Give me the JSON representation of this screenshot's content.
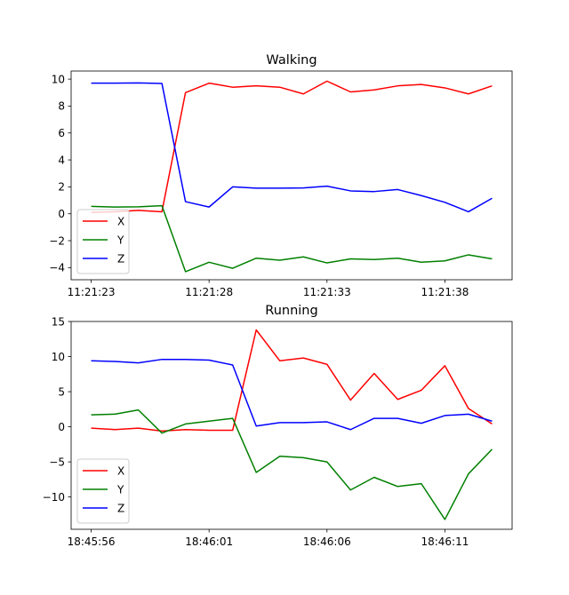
{
  "chart_data": [
    {
      "type": "line",
      "title": "Walking",
      "x": [
        "11:21:23",
        "11:21:24",
        "11:21:25",
        "11:21:26",
        "11:21:27",
        "11:21:28",
        "11:21:29",
        "11:21:30",
        "11:21:31",
        "11:21:32",
        "11:21:33",
        "11:21:34",
        "11:21:35",
        "11:21:36",
        "11:21:37",
        "11:21:38",
        "11:21:39",
        "11:21:40"
      ],
      "x_ticks": [
        "11:21:23",
        "11:21:28",
        "11:21:33",
        "11:21:38"
      ],
      "y_ticks": [
        -4,
        -2,
        0,
        2,
        4,
        6,
        8,
        10
      ],
      "ylim": [
        -4.9,
        10.6
      ],
      "xlim": [
        -0.85,
        17.85
      ],
      "legend": "lower-left",
      "grid": false,
      "series": [
        {
          "name": "X",
          "color": "#ff0000",
          "values": [
            0.1,
            0.15,
            0.25,
            0.15,
            9.0,
            9.7,
            9.4,
            9.5,
            9.4,
            8.9,
            9.85,
            9.05,
            9.2,
            9.5,
            9.6,
            9.35,
            8.9,
            9.5
          ]
        },
        {
          "name": "Y",
          "color": "#008000",
          "values": [
            0.55,
            0.5,
            0.52,
            0.6,
            -4.3,
            -3.6,
            -4.05,
            -3.3,
            -3.45,
            -3.2,
            -3.65,
            -3.35,
            -3.4,
            -3.3,
            -3.6,
            -3.5,
            -3.05,
            -3.35
          ]
        },
        {
          "name": "Z",
          "color": "#0000ff",
          "values": [
            9.7,
            9.7,
            9.72,
            9.68,
            0.9,
            0.5,
            2.0,
            1.9,
            1.9,
            1.92,
            2.05,
            1.7,
            1.65,
            1.8,
            1.35,
            0.85,
            0.15,
            1.15
          ]
        }
      ]
    },
    {
      "type": "line",
      "title": "Running",
      "x": [
        "18:45:56",
        "18:45:57",
        "18:45:58",
        "18:45:59",
        "18:46:00",
        "18:46:01",
        "18:46:02",
        "18:46:03",
        "18:46:04",
        "18:46:05",
        "18:46:06",
        "18:46:07",
        "18:46:08",
        "18:46:09",
        "18:46:10",
        "18:46:11",
        "18:46:12",
        "18:46:13"
      ],
      "x_ticks": [
        "18:45:56",
        "18:46:01",
        "18:46:06",
        "18:46:11"
      ],
      "y_ticks": [
        -10,
        -5,
        0,
        5,
        10,
        15
      ],
      "ylim": [
        -14.6,
        15.0
      ],
      "xlim": [
        -0.85,
        17.85
      ],
      "legend": "lower-left",
      "grid": false,
      "series": [
        {
          "name": "X",
          "color": "#ff0000",
          "values": [
            -0.2,
            -0.4,
            -0.2,
            -0.6,
            -0.4,
            -0.5,
            -0.5,
            13.8,
            9.4,
            9.8,
            8.9,
            3.8,
            7.6,
            3.9,
            5.2,
            8.7,
            2.6,
            0.4
          ]
        },
        {
          "name": "Y",
          "color": "#008000",
          "values": [
            1.7,
            1.8,
            2.4,
            -0.9,
            0.4,
            0.8,
            1.2,
            -6.5,
            -4.2,
            -4.4,
            -5.0,
            -9.0,
            -7.2,
            -8.5,
            -8.1,
            -13.2,
            -6.7,
            -3.2
          ]
        },
        {
          "name": "Z",
          "color": "#0000ff",
          "values": [
            9.4,
            9.3,
            9.1,
            9.6,
            9.6,
            9.5,
            8.8,
            0.1,
            0.6,
            0.6,
            0.7,
            -0.4,
            1.2,
            1.2,
            0.5,
            1.6,
            1.8,
            0.8
          ]
        }
      ]
    }
  ]
}
